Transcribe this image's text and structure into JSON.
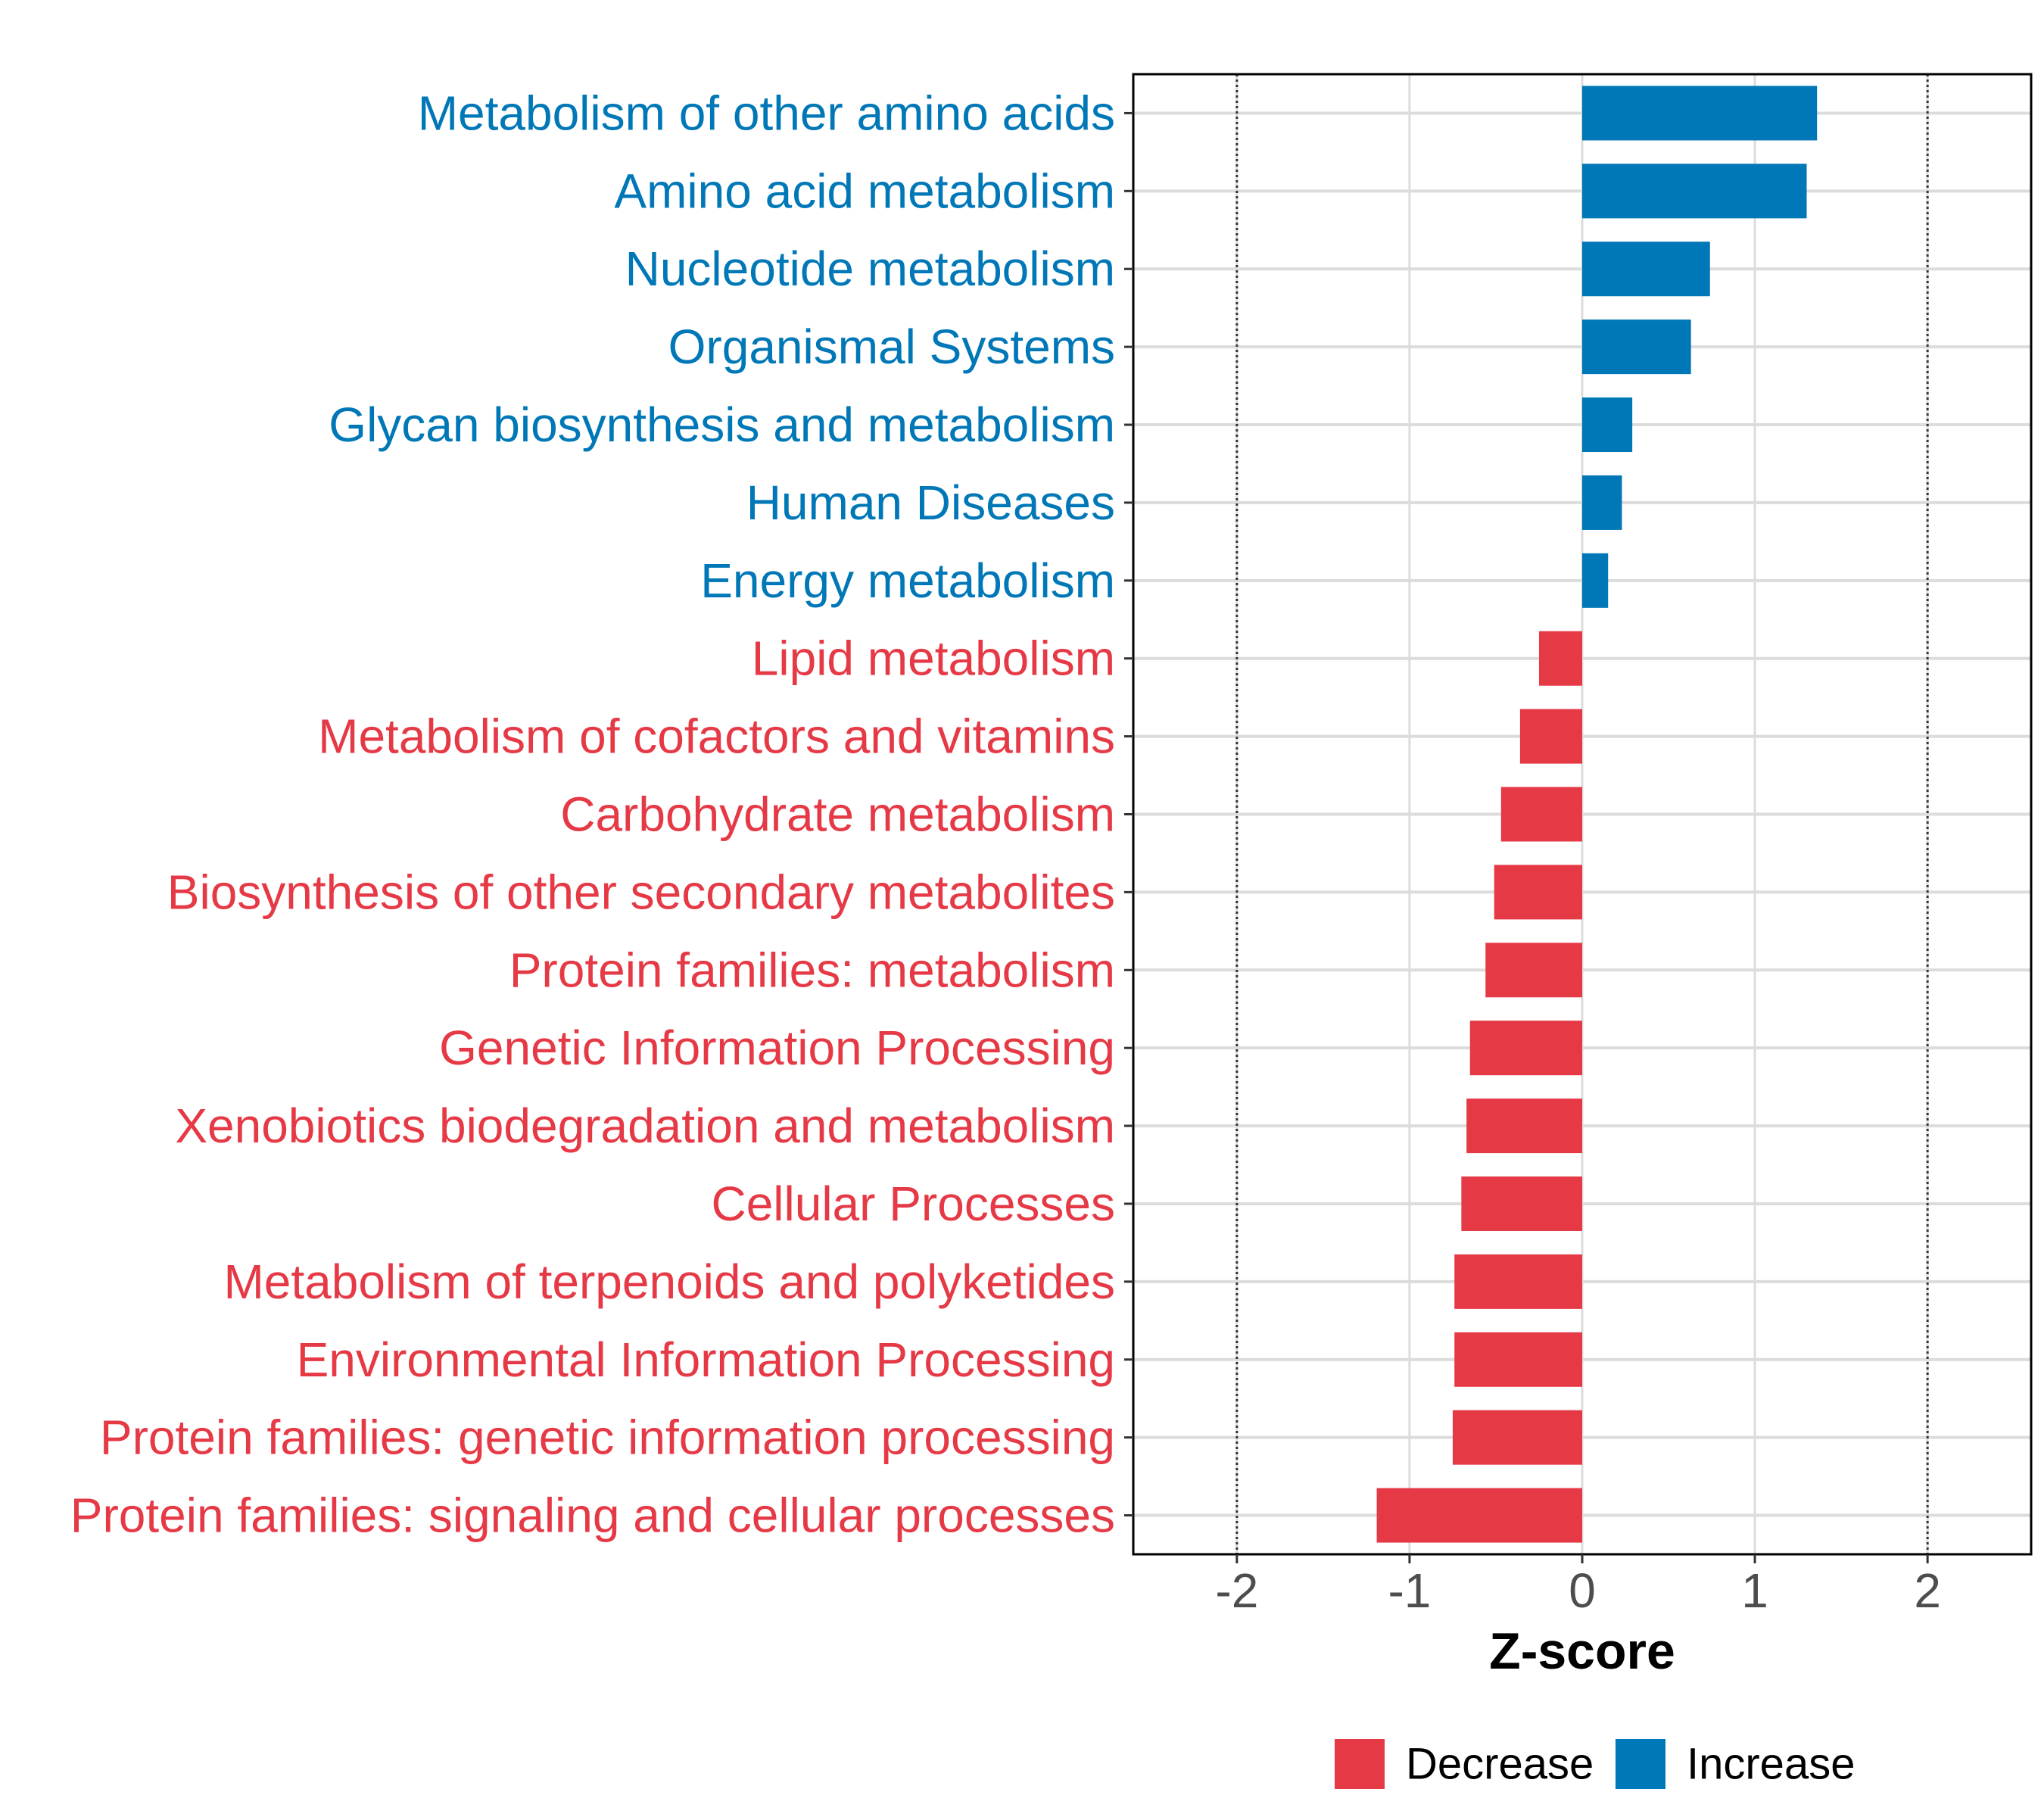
{
  "chart_data": {
    "type": "bar",
    "orientation": "horizontal",
    "xlabel": "Z-score",
    "ylabel": "",
    "xlim": [
      -2.6,
      2.6
    ],
    "x_ticks": [
      -2,
      -1,
      0,
      1,
      2
    ],
    "x_tick_labels": [
      "-2",
      "-1",
      "0",
      "1",
      "2"
    ],
    "reference_lines": [
      -2,
      2
    ],
    "grid": true,
    "legend_position": "bottom",
    "colors": {
      "Decrease": "#e63946",
      "Increase": "#0077b6"
    },
    "legend": [
      {
        "name": "Decrease",
        "color": "#e63946"
      },
      {
        "name": "Increase",
        "color": "#0077b6"
      }
    ],
    "categories": [
      "Metabolism of other amino acids",
      "Amino acid metabolism",
      "Nucleotide metabolism",
      "Organismal Systems",
      "Glycan biosynthesis and metabolism",
      "Human Diseases",
      "Energy metabolism",
      "Lipid metabolism",
      "Metabolism of cofactors and vitamins",
      "Carbohydrate metabolism",
      "Biosynthesis of other secondary metabolites",
      "Protein families: metabolism",
      "Genetic Information Processing",
      "Xenobiotics biodegradation and metabolism",
      "Cellular Processes",
      "Metabolism of terpenoids and polyketides",
      "Environmental Information Processing",
      "Protein families: genetic information processing",
      "Protein families: signaling and cellular processes"
    ],
    "values": [
      1.36,
      1.3,
      0.74,
      0.63,
      0.29,
      0.23,
      0.15,
      -0.25,
      -0.36,
      -0.47,
      -0.51,
      -0.56,
      -0.65,
      -0.67,
      -0.7,
      -0.74,
      -0.74,
      -0.75,
      -1.19
    ],
    "groups": [
      "Increase",
      "Increase",
      "Increase",
      "Increase",
      "Increase",
      "Increase",
      "Increase",
      "Decrease",
      "Decrease",
      "Decrease",
      "Decrease",
      "Decrease",
      "Decrease",
      "Decrease",
      "Decrease",
      "Decrease",
      "Decrease",
      "Decrease",
      "Decrease"
    ]
  }
}
